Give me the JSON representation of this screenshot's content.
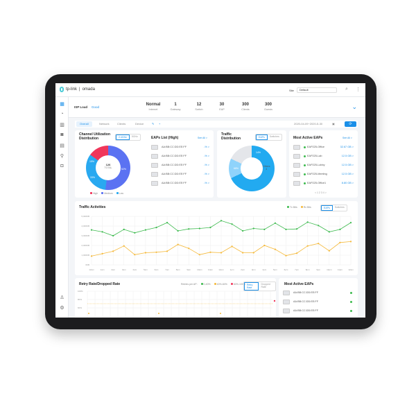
{
  "header": {
    "brand": "tp-link",
    "product": "omada",
    "site_label": "Site",
    "site_value": "Default"
  },
  "sidebar": {
    "items": [
      "dashboard-icon",
      "statistics-icon",
      "map-icon",
      "devices-icon",
      "insights-icon",
      "location-icon",
      "camera-icon",
      "account-icon",
      "settings-icon"
    ]
  },
  "summary": {
    "label": "ISP Load",
    "state": "Good",
    "stats": [
      {
        "value": "Normal",
        "label": "Internet"
      },
      {
        "value": "1",
        "label": "Gateway"
      },
      {
        "value": "12",
        "label": "Switch"
      },
      {
        "value": "30",
        "label": "EAP"
      },
      {
        "value": "300",
        "label": "Clients"
      },
      {
        "value": "300",
        "label": "Guests"
      }
    ]
  },
  "tabs": {
    "items": [
      "Overall",
      "Network",
      "Clients",
      "Device"
    ],
    "active": 0,
    "date_range": "2020-04-09~2020-5-30"
  },
  "channel": {
    "title1": "Channel Utilization",
    "title2": "Distribution",
    "bands": [
      "2.4GHz",
      "5GHz"
    ],
    "center_value": "126",
    "center_label": "TOTAL",
    "slices": [
      {
        "name": "High",
        "percent": 15,
        "color": "#f0365a"
      },
      {
        "name": "Medium",
        "percent": 52,
        "color": "#5b72f2"
      },
      {
        "name": "Low",
        "percent": 33,
        "color": "#29a9f0"
      }
    ],
    "slice_labels": [
      "15%",
      "52%",
      "33%"
    ]
  },
  "eaps_high": {
    "title": "EAPs List (High)",
    "see_all": "See All >",
    "rows": [
      {
        "mac": "AA:BB:CC:DD:EE:FF",
        "value": "-% >"
      },
      {
        "mac": "AA:BB:CC:DD:EE:FF",
        "value": "-% >"
      },
      {
        "mac": "AA:BB:CC:DD:EE:FF",
        "value": "-% >"
      },
      {
        "mac": "AA:BB:CC:DD:EE:FF",
        "value": "-% >"
      },
      {
        "mac": "AA:BB:CC:DD:EE:FF",
        "value": "-% >"
      }
    ]
  },
  "traffic_dist": {
    "title1": "Traffic",
    "title2": "Distribution",
    "options": [
      "EAPs",
      "Switches"
    ],
    "slice_labels": [
      "68%",
      "14%",
      "Others\n4"
    ],
    "slices": [
      {
        "percent": 68,
        "color": "#22aaf0"
      },
      {
        "percent": 14,
        "color": "#8fd3fb"
      },
      {
        "percent": 18,
        "color": "#e4e6ea"
      }
    ]
  },
  "most_active": {
    "title": "Most Active EAPs",
    "see_all": "See All >",
    "rows": [
      {
        "name": "EAP225-Office",
        "value": "32.67 GB >"
      },
      {
        "name": "EAP225-Lab",
        "value": "12.5 GB >"
      },
      {
        "name": "EAP225-Lobby",
        "value": "12.5 GB >"
      },
      {
        "name": "EAP225-Meeting",
        "value": "12.5 GB >"
      },
      {
        "name": "EAP225-Office1",
        "value": "8.80 GB >"
      }
    ],
    "pages": "< 1 2 3 4 >"
  },
  "traffic_activities": {
    "title": "Traffic Activities",
    "legend": [
      "Tx Bits",
      "Rx Bits"
    ],
    "options": [
      "EAPs",
      "Switches"
    ],
    "y_ticks": [
      "0KB",
      "1,000KB",
      "2,000KB",
      "3,000KB",
      "4,000KB",
      "5,000KB"
    ],
    "ylim": [
      0,
      5000
    ],
    "x_ticks": [
      "12am",
      "1am",
      "2am",
      "3am",
      "4am",
      "5am",
      "6am",
      "7am",
      "8am",
      "9am",
      "10am",
      "11am",
      "12pm",
      "1pm",
      "2pm",
      "3pm",
      "4pm",
      "5pm",
      "6pm",
      "7pm",
      "8pm",
      "9pm",
      "10pm",
      "11pm",
      "12am"
    ],
    "series": [
      {
        "name": "Tx Bits",
        "color": "#3dba4e",
        "values": [
          3600,
          3400,
          3000,
          3650,
          3300,
          3600,
          3850,
          4350,
          3500,
          3700,
          3750,
          3850,
          4550,
          4200,
          3500,
          3750,
          3650,
          4300,
          3650,
          3700,
          4400,
          4050,
          3400,
          3650,
          4350
        ]
      },
      {
        "name": "Rx Bits",
        "color": "#f5b93a",
        "values": [
          900,
          1150,
          1400,
          1950,
          1050,
          1250,
          1300,
          1400,
          2100,
          1700,
          1050,
          1300,
          1250,
          1900,
          1250,
          1250,
          2000,
          1600,
          950,
          1200,
          1950,
          2200,
          1450,
          2300,
          2400
        ]
      }
    ]
  },
  "retry": {
    "title": "Retry Rate/Dropped Rate",
    "per_ap": "Retries per AP:",
    "legend": [
      {
        "label": "0-40%",
        "color": "#3dba4e"
      },
      {
        "label": "40%-60%",
        "color": "#f5b93a"
      },
      {
        "label": "60%-100%",
        "color": "#f0365a"
      }
    ],
    "options": [
      "Retry Rate",
      "Dropped Rate"
    ],
    "y_ticks": [
      "100%",
      "80%",
      "60%"
    ]
  },
  "most_active_bottom": {
    "title": "Most Active EAPs",
    "rows": [
      "AA:BB:CC:DD:EE:FF",
      "AA:BB:CC:DD:EE:FF",
      "AA:BB:CC:DD:EE:FF"
    ]
  }
}
